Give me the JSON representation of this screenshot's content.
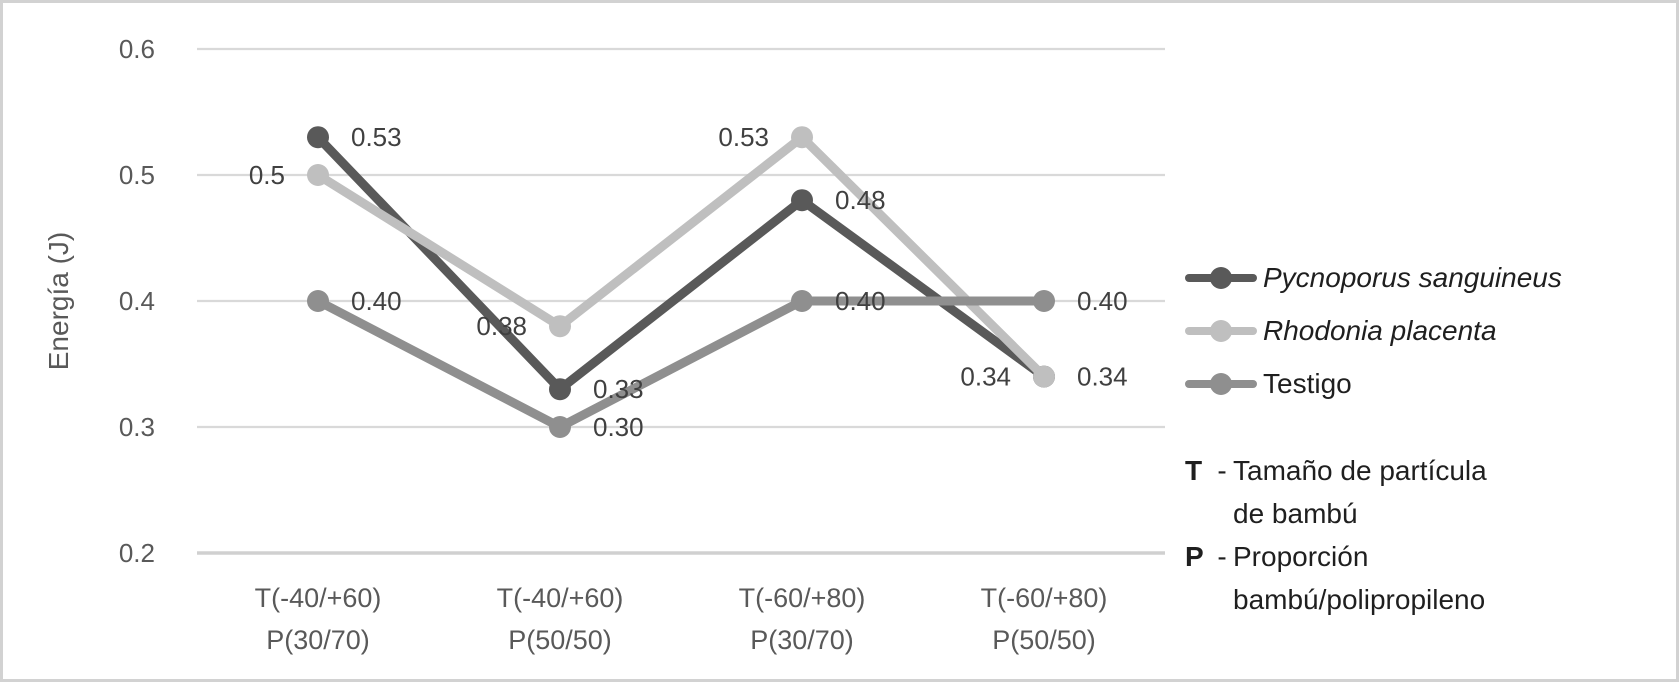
{
  "frame": {
    "background": "#ffffff",
    "border_color": "#d2d2d2"
  },
  "chart_data": {
    "type": "line",
    "title": "",
    "xlabel": "",
    "ylabel": "Energía (J)",
    "ylim": [
      0.2,
      0.6
    ],
    "grid": true,
    "legend_position": "right",
    "yticks": [
      {
        "label": "0.6",
        "value": 0.6
      },
      {
        "label": "0.5",
        "value": 0.5
      },
      {
        "label": "0.4",
        "value": 0.4
      },
      {
        "label": "0.3",
        "value": 0.3
      },
      {
        "label": "0.2",
        "value": 0.2
      }
    ],
    "categories": [
      {
        "line1": "T(-40/+60)",
        "line2": "P(30/70)"
      },
      {
        "line1": "T(-40/+60)",
        "line2": "P(50/50)"
      },
      {
        "line1": "T(-60/+80)",
        "line2": "P(30/70)"
      },
      {
        "line1": "T(-60/+80)",
        "line2": "P(50/50)"
      }
    ],
    "series": [
      {
        "name": "Pycnoporus sanguineus",
        "italic": true,
        "color": "#595959",
        "values": [
          0.53,
          0.33,
          0.48,
          0.34
        ],
        "point_labels": [
          {
            "text": "0.53",
            "side": "right"
          },
          {
            "text": "0.33",
            "side": "right"
          },
          {
            "text": "0.48",
            "side": "right"
          },
          {
            "text": "0.34",
            "side": "left"
          }
        ]
      },
      {
        "name": "Rhodonia placenta",
        "italic": true,
        "color": "#bfbfbf",
        "values": [
          0.5,
          0.38,
          0.53,
          0.34
        ],
        "point_labels": [
          {
            "text": "0.5",
            "side": "left"
          },
          {
            "text": "0.38",
            "side": "left"
          },
          {
            "text": "0.53",
            "side": "left"
          },
          {
            "text": "0.34",
            "side": "right"
          }
        ]
      },
      {
        "name": "Testigo",
        "italic": false,
        "color": "#8f8f8f",
        "values": [
          0.4,
          0.3,
          0.4,
          0.4
        ],
        "point_labels": [
          {
            "text": "0.40",
            "side": "right"
          },
          {
            "text": "0.30",
            "side": "right"
          },
          {
            "text": "0.40",
            "side": "right"
          },
          {
            "text": "0.40",
            "side": "right"
          }
        ]
      }
    ],
    "colors": {
      "gridline": "#d9d9d9",
      "axis_line": "#d0d0d0",
      "tick_text": "#595959",
      "category_text": "#595959",
      "data_label_text": "#404040",
      "axis_title_text": "#595959",
      "legend_text": "#1f1f1f"
    }
  },
  "annotation": {
    "separator": "-",
    "items": [
      {
        "term": "T",
        "definition_lines": [
          "Tamaño de partícula",
          "de bambú"
        ]
      },
      {
        "term": "P",
        "definition_lines": [
          "Proporción",
          "bambú/polipropileno"
        ]
      }
    ]
  }
}
